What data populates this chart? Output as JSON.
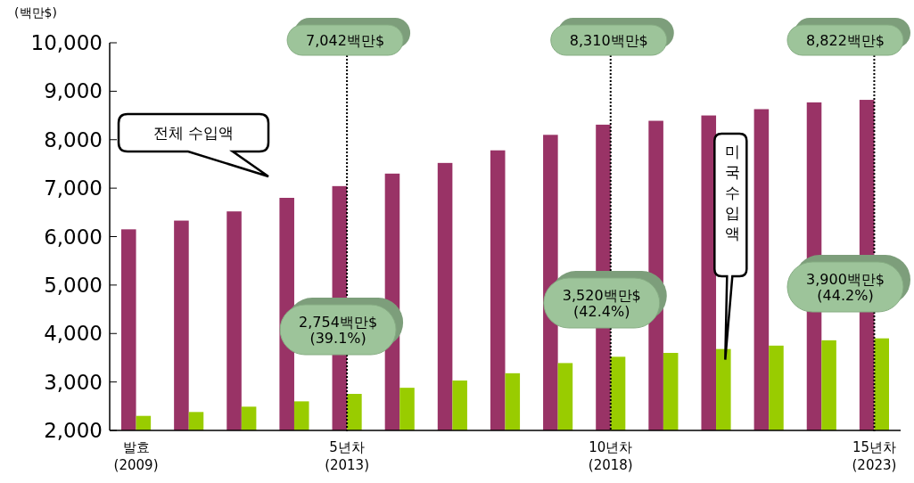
{
  "chart_data": {
    "type": "bar",
    "ylabel": "(백만$)",
    "categories": [
      "발효\n(2009)",
      null,
      null,
      null,
      "5년차\n(2013)",
      null,
      null,
      null,
      null,
      "10년차\n(2018)",
      null,
      null,
      null,
      null,
      "15년차\n(2023)"
    ],
    "series": [
      {
        "color": "#993366",
        "values": [
          6150,
          6330,
          6520,
          6800,
          7042,
          7300,
          7520,
          7780,
          8100,
          8310,
          8390,
          8500,
          8630,
          8770,
          8822
        ]
      },
      {
        "color": "#99cc00",
        "values": [
          2300,
          2380,
          2490,
          2600,
          2754,
          2880,
          3030,
          3180,
          3390,
          3520,
          3600,
          3680,
          3750,
          3860,
          3900
        ]
      }
    ],
    "ylim": [
      2000,
      10000
    ],
    "yticks": [
      {
        "value": 2000,
        "label": "2,000"
      },
      {
        "value": 3000,
        "label": "3,000"
      },
      {
        "value": 4000,
        "label": "4,000"
      },
      {
        "value": 5000,
        "label": "5,000"
      },
      {
        "value": 6000,
        "label": "6,000"
      },
      {
        "value": 7000,
        "label": "7,000"
      },
      {
        "value": 8000,
        "label": "8,000"
      },
      {
        "value": 9000,
        "label": "9,000"
      },
      {
        "value": 10000,
        "label": "10,000"
      }
    ],
    "annotations": [
      "전체 수입액",
      "미국수입액",
      "7,042백만$",
      "2,754백만$\n(39.1%)",
      "8,310백만$",
      "3,520백만$\n(42.4%)",
      "8,822백만$",
      "3,900백만$\n(44.2%)"
    ],
    "grid": false,
    "legend": false
  }
}
